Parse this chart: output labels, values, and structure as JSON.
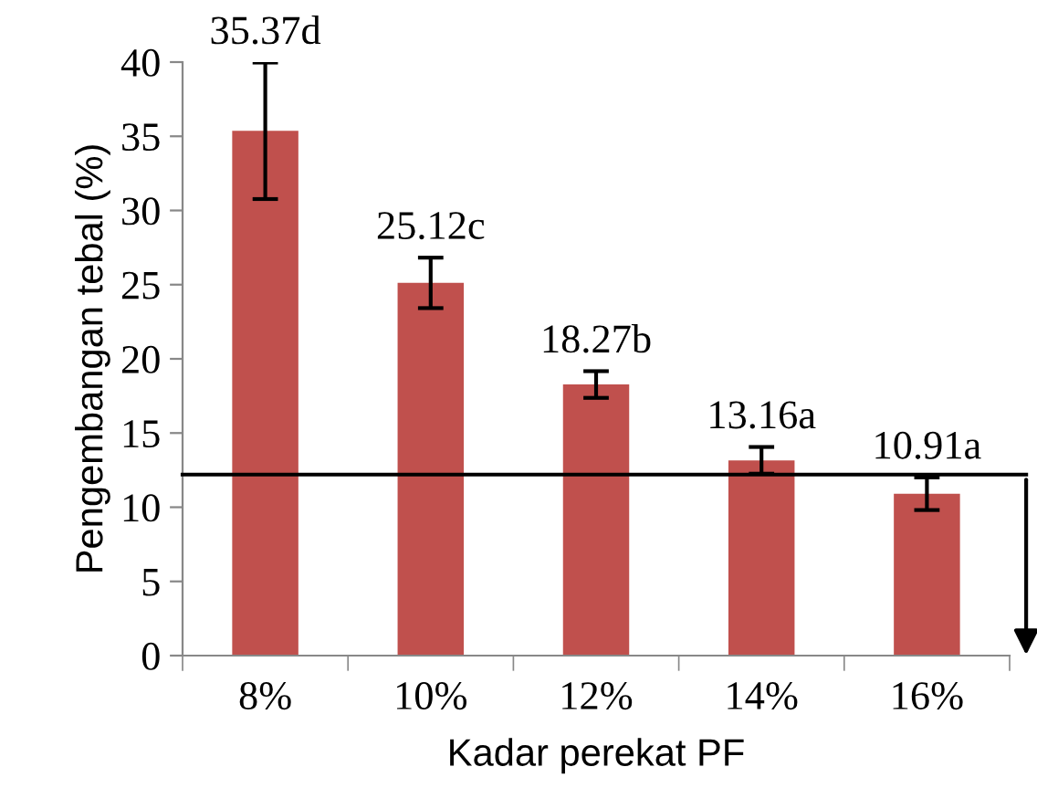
{
  "chart_data": {
    "type": "bar",
    "xlabel": "Kadar perekat PF",
    "ylabel": "Pengembangan tebal (%)",
    "categories": [
      "8%",
      "10%",
      "12%",
      "14%",
      "16%"
    ],
    "values": [
      35.37,
      25.12,
      18.27,
      13.16,
      10.91
    ],
    "value_labels": [
      "35.37d",
      "25.12c",
      "18.27b",
      "13.16a",
      "10.91a"
    ],
    "errors": [
      4.6,
      1.7,
      0.9,
      0.9,
      1.1
    ],
    "color": "#c0504d",
    "ylim": [
      0,
      40
    ],
    "yticks": [
      0,
      5,
      10,
      15,
      20,
      25,
      30,
      35,
      40
    ],
    "ref_lines": [
      {
        "axis": "y",
        "value": 12.2,
        "color": "#000000"
      }
    ],
    "grid": false,
    "legend": false
  }
}
